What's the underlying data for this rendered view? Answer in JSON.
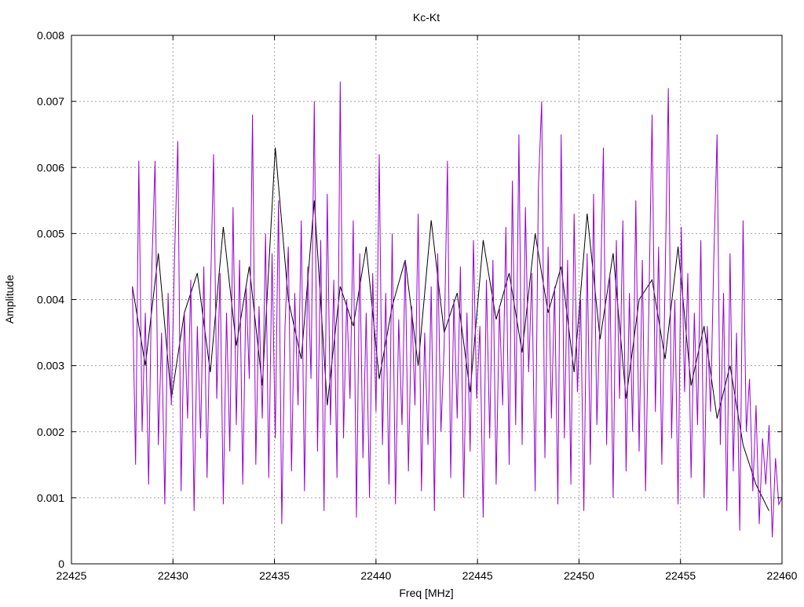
{
  "chart_data": {
    "type": "line",
    "title": "Kc-Kt",
    "xlabel": "Freq [MHz]",
    "ylabel": "Amplitude",
    "xlim": [
      22425,
      22460
    ],
    "ylim": [
      0,
      0.008
    ],
    "grid": true,
    "legend": "none",
    "x_ticks": [
      "22425",
      "22430",
      "22435",
      "22440",
      "22445",
      "22450",
      "22455",
      "22460"
    ],
    "x_tick_values": [
      22425,
      22430,
      22435,
      22440,
      22445,
      22450,
      22455,
      22460
    ],
    "y_ticks": [
      "0",
      "0.001",
      "0.002",
      "0.003",
      "0.004",
      "0.005",
      "0.006",
      "0.007",
      "0.008"
    ],
    "y_tick_values": [
      0,
      0.001,
      0.002,
      0.003,
      0.004,
      0.005,
      0.006,
      0.007,
      0.008
    ],
    "series": [
      {
        "name": "black",
        "color": "#000000",
        "x_start": 22428,
        "x_step": 0.64,
        "values": [
          0.0042,
          0.003,
          0.0047,
          0.0025,
          0.0038,
          0.0044,
          0.0029,
          0.0051,
          0.0033,
          0.0045,
          0.0027,
          0.0063,
          0.004,
          0.0031,
          0.0055,
          0.0024,
          0.0042,
          0.0036,
          0.0048,
          0.0028,
          0.0039,
          0.0046,
          0.003,
          0.0052,
          0.0035,
          0.0041,
          0.0026,
          0.0049,
          0.0037,
          0.0044,
          0.0032,
          0.005,
          0.0038,
          0.0045,
          0.0029,
          0.0053,
          0.0034,
          0.0047,
          0.0025,
          0.004,
          0.0043,
          0.0031,
          0.0048,
          0.0027,
          0.0036,
          0.0022,
          0.003,
          0.0018,
          0.0012,
          0.0008
        ]
      },
      {
        "name": "purple",
        "color": "#9400d3",
        "x_start": 22428,
        "x_step": 0.16,
        "values": [
          0.0042,
          0.0015,
          0.0061,
          0.002,
          0.0038,
          0.0012,
          0.0045,
          0.0061,
          0.0018,
          0.0035,
          0.0009,
          0.0041,
          0.0024,
          0.0047,
          0.0064,
          0.0011,
          0.0038,
          0.0022,
          0.0043,
          0.0008,
          0.0036,
          0.0019,
          0.0045,
          0.0013,
          0.004,
          0.0062,
          0.0025,
          0.0044,
          0.0009,
          0.0038,
          0.0017,
          0.0054,
          0.0021,
          0.0046,
          0.0012,
          0.0042,
          0.0028,
          0.0068,
          0.0015,
          0.0039,
          0.0022,
          0.005,
          0.0013,
          0.0047,
          0.0019,
          0.0055,
          0.0006,
          0.0036,
          0.0048,
          0.0014,
          0.0041,
          0.0024,
          0.0052,
          0.0011,
          0.0045,
          0.0028,
          0.007,
          0.0017,
          0.0049,
          0.0008,
          0.0056,
          0.0021,
          0.0043,
          0.0013,
          0.0073,
          0.0019,
          0.004,
          0.0025,
          0.0052,
          0.0007,
          0.0047,
          0.0016,
          0.0038,
          0.001,
          0.0044,
          0.0023,
          0.0062,
          0.0018,
          0.0041,
          0.0012,
          0.005,
          0.0009,
          0.0037,
          0.0021,
          0.0046,
          0.0014,
          0.0039,
          0.0024,
          0.0053,
          0.0011,
          0.0035,
          0.0018,
          0.0042,
          0.0008,
          0.0047,
          0.002,
          0.0033,
          0.0061,
          0.0013,
          0.004,
          0.0022,
          0.0045,
          0.001,
          0.0038,
          0.0017,
          0.0049,
          0.0025,
          0.0036,
          0.0007,
          0.0043,
          0.0019,
          0.0046,
          0.0012,
          0.0039,
          0.0024,
          0.0051,
          0.0015,
          0.0058,
          0.0021,
          0.0065,
          0.0018,
          0.0054,
          0.0029,
          0.0044,
          0.0011,
          0.0057,
          0.007,
          0.0016,
          0.0048,
          0.0022,
          0.0042,
          0.0009,
          0.0065,
          0.0019,
          0.0046,
          0.0012,
          0.0053,
          0.0026,
          0.004,
          0.0008,
          0.0047,
          0.0015,
          0.0056,
          0.0021,
          0.0038,
          0.0063,
          0.0018,
          0.0044,
          0.001,
          0.0049,
          0.0025,
          0.0052,
          0.0014,
          0.0041,
          0.002,
          0.0055,
          0.0017,
          0.0046,
          0.0011,
          0.0039,
          0.0068,
          0.0023,
          0.0048,
          0.0015,
          0.0043,
          0.0072,
          0.0019,
          0.004,
          0.0009,
          0.0051,
          0.0026,
          0.0044,
          0.0013,
          0.0038,
          0.0021,
          0.0049,
          0.001,
          0.0036,
          0.0023,
          0.0046,
          0.0065,
          0.0018,
          0.0041,
          0.0008,
          0.0047,
          0.0014,
          0.0035,
          0.0005,
          0.0052,
          0.002,
          0.0028,
          0.0011,
          0.0024,
          0.0006,
          0.0019,
          0.0012,
          0.0021,
          0.0004,
          0.0016,
          0.0009,
          0.001
        ]
      }
    ]
  }
}
